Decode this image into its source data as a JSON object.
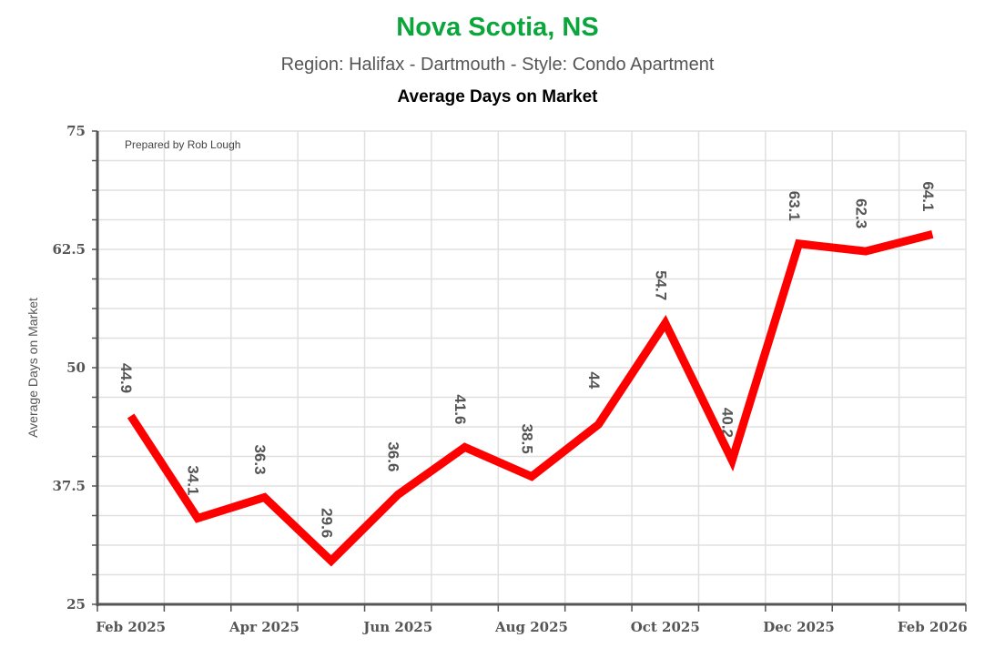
{
  "header": {
    "title": "Nova Scotia, NS",
    "subtitle": "Region: Halifax - Dartmouth - Style: Condo Apartment",
    "metric_title": "Average Days on Market"
  },
  "credit": "Prepared by Rob Lough",
  "colors": {
    "title": "#0aa63c",
    "line": "#ff0000",
    "axis": "#555555",
    "grid": "#e0e0e0"
  },
  "chart_data": {
    "type": "line",
    "title": "Average Days on Market",
    "subtitle": "Region: Halifax - Dartmouth - Style: Condo Apartment",
    "xlabel": "",
    "ylabel": "Average Days on Market",
    "ylim": [
      25,
      75
    ],
    "yticks": [
      "25",
      "37.5",
      "50",
      "62.5",
      "75"
    ],
    "xtick_labels": [
      "Feb 2025",
      "Apr 2025",
      "Jun 2025",
      "Aug 2025",
      "Oct 2025",
      "Dec 2025",
      "Feb 2026"
    ],
    "grid": true,
    "legend": null,
    "categories": [
      "Feb 2025",
      "Mar 2025",
      "Apr 2025",
      "May 2025",
      "Jun 2025",
      "Jul 2025",
      "Aug 2025",
      "Sep 2025",
      "Oct 2025",
      "Nov 2025",
      "Dec 2025",
      "Jan 2026",
      "Feb 2026"
    ],
    "series": [
      {
        "name": "Average Days on Market",
        "values": [
          44.9,
          34.1,
          36.3,
          29.6,
          36.6,
          41.6,
          38.5,
          44,
          54.7,
          40.2,
          63.1,
          62.3,
          64.1
        ],
        "labels": [
          "44.9",
          "34.1",
          "36.3",
          "29.6",
          "36.6",
          "41.6",
          "38.5",
          "44",
          "54.7",
          "40.2",
          "63.1",
          "62.3",
          "64.1"
        ]
      }
    ]
  }
}
